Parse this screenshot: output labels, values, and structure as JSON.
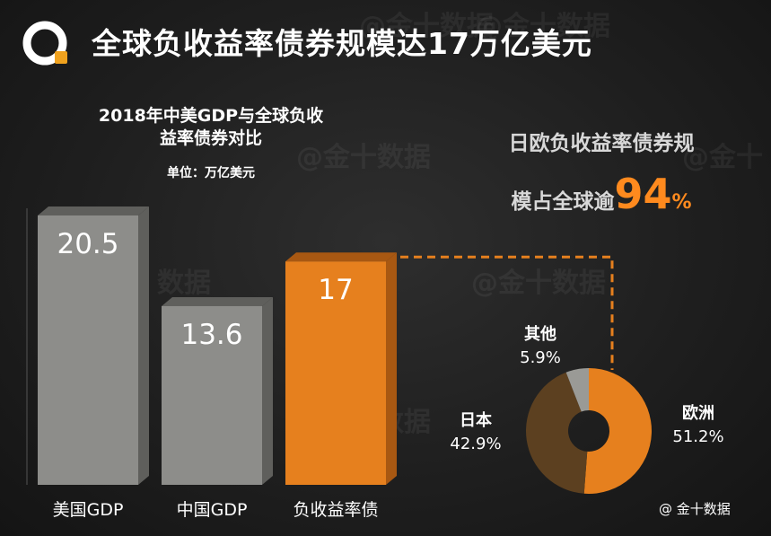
{
  "title": "全球负收益率债券规模达17万亿美元",
  "watermarks": [
    "@金十数据",
    "@金十数据",
    "数据",
    "数据",
    "@金十数据",
    "数据",
    "@金十",
    "数据"
  ],
  "credit": "@ 金十数据",
  "colors": {
    "gray": "#8d8d8a",
    "gray_dark": "#5f5f5c",
    "orange": "#e6801e",
    "orange_dark": "#a85812",
    "brown": "#5c4020",
    "gray_slice": "#9a9a96"
  },
  "chart_data": [
    {
      "type": "bar",
      "title_lines": [
        "2018年中美GDP与全球负收",
        "益率债券对比"
      ],
      "unit_label": "单位：万亿美元",
      "categories": [
        "美国GDP",
        "中国GDP",
        "负收益率债"
      ],
      "values": [
        20.5,
        13.6,
        17
      ],
      "value_labels": [
        "20.5",
        "13.6",
        "17"
      ],
      "ylim": [
        0,
        20.5
      ]
    },
    {
      "type": "pie",
      "variant": "donut",
      "title_line1": "日欧负收益率债券规",
      "title_line2_prefix": "模占全球逾",
      "title_highlight": "94",
      "title_suffix": "%",
      "slices": [
        {
          "label": "欧洲",
          "value": 51.2,
          "value_label": "51.2%"
        },
        {
          "label": "日本",
          "value": 42.9,
          "value_label": "42.9%"
        },
        {
          "label": "其他",
          "value": 5.9,
          "value_label": "5.9%"
        }
      ]
    }
  ]
}
